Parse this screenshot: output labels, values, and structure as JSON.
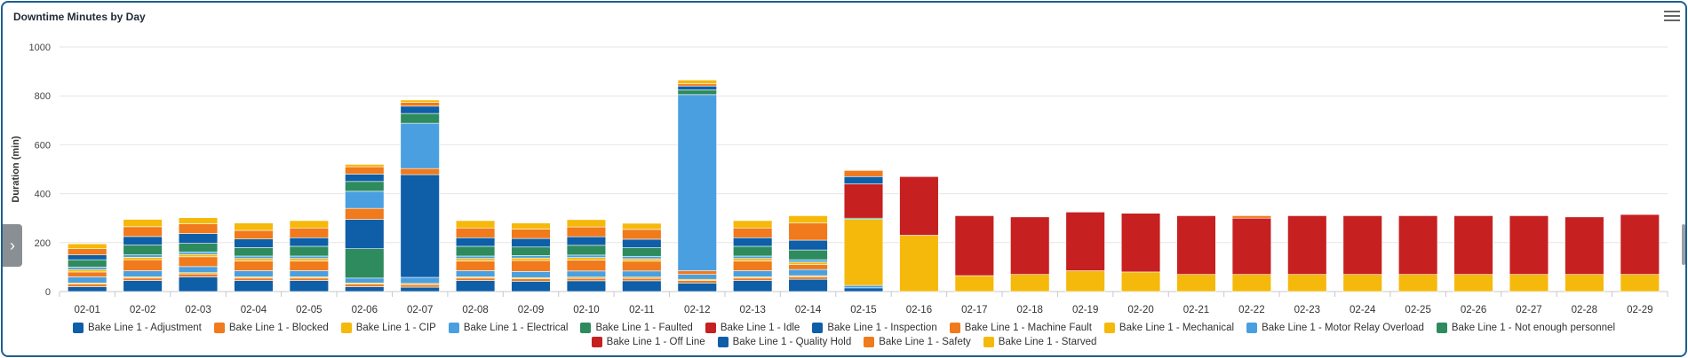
{
  "title": "Downtime Minutes by Day",
  "icons": {
    "menu": "hamburger-menu-icon",
    "side_toggle": "chevron-right-icon"
  },
  "side_toggle_glyph": "›",
  "chart_data": {
    "type": "bar",
    "stacked": true,
    "title": "Downtime Minutes by Day",
    "xlabel": "",
    "ylabel": "Duration (min)",
    "ylim": [
      0,
      1000
    ],
    "yticks": [
      0,
      200,
      400,
      600,
      800,
      1000
    ],
    "grid": true,
    "legend_position": "bottom",
    "categories": [
      "02-01",
      "02-02",
      "02-03",
      "02-04",
      "02-05",
      "02-06",
      "02-07",
      "02-08",
      "02-09",
      "02-10",
      "02-11",
      "02-12",
      "02-13",
      "02-14",
      "02-15",
      "02-16",
      "02-17",
      "02-18",
      "02-19",
      "02-20",
      "02-21",
      "02-22",
      "02-23",
      "02-24",
      "02-25",
      "02-26",
      "02-27",
      "02-28",
      "02-29"
    ],
    "series": [
      {
        "name": "Bake Line 1 - Adjustment",
        "color": "#0e5ea8",
        "values": [
          20,
          45,
          60,
          45,
          45,
          20,
          18,
          45,
          42,
          44,
          44,
          35,
          45,
          50,
          15,
          0,
          0,
          0,
          0,
          0,
          0,
          0,
          0,
          0,
          0,
          0,
          0,
          0,
          0
        ]
      },
      {
        "name": "Bake Line 1 - Blocked",
        "color": "#f07a1c",
        "values": [
          10,
          10,
          12,
          10,
          10,
          10,
          10,
          10,
          10,
          10,
          10,
          10,
          10,
          10,
          0,
          0,
          0,
          0,
          0,
          0,
          0,
          0,
          0,
          0,
          0,
          0,
          0,
          0,
          0
        ]
      },
      {
        "name": "Bake Line 1 - CIP",
        "color": "#f5b90c",
        "values": [
          5,
          5,
          5,
          5,
          5,
          5,
          5,
          5,
          5,
          5,
          5,
          5,
          5,
          5,
          0,
          0,
          0,
          0,
          0,
          0,
          0,
          0,
          0,
          0,
          0,
          0,
          0,
          0,
          0
        ]
      },
      {
        "name": "Bake Line 1 - Electrical",
        "color": "#4a9fe0",
        "values": [
          25,
          25,
          25,
          25,
          25,
          20,
          25,
          25,
          25,
          25,
          25,
          20,
          25,
          25,
          10,
          0,
          0,
          0,
          0,
          0,
          0,
          0,
          0,
          0,
          0,
          0,
          0,
          0,
          0
        ]
      },
      {
        "name": "Bake Line 1 - Faulted",
        "color": "#2e8b5e",
        "values": [
          0,
          0,
          0,
          0,
          0,
          120,
          0,
          0,
          0,
          0,
          0,
          0,
          0,
          0,
          0,
          0,
          0,
          0,
          0,
          0,
          0,
          0,
          0,
          0,
          0,
          0,
          0,
          0,
          0
        ]
      },
      {
        "name": "Bake Line 1 - Idle",
        "color": "#c62020",
        "values": [
          0,
          0,
          0,
          0,
          0,
          0,
          0,
          0,
          0,
          0,
          0,
          0,
          0,
          0,
          0,
          0,
          0,
          0,
          0,
          0,
          0,
          0,
          0,
          0,
          0,
          0,
          0,
          0,
          0
        ]
      },
      {
        "name": "Bake Line 1 - Inspection",
        "color": "#0e5ea8",
        "values": [
          0,
          0,
          0,
          0,
          0,
          120,
          420,
          0,
          0,
          0,
          0,
          0,
          0,
          0,
          0,
          0,
          0,
          0,
          0,
          0,
          0,
          0,
          0,
          0,
          0,
          0,
          0,
          0,
          0
        ]
      },
      {
        "name": "Bake Line 1 - Machine Fault",
        "color": "#f07a1c",
        "values": [
          20,
          45,
          40,
          40,
          40,
          45,
          25,
          40,
          45,
          45,
          40,
          15,
          40,
          20,
          0,
          0,
          0,
          0,
          0,
          0,
          0,
          0,
          0,
          0,
          0,
          0,
          0,
          0,
          0
        ]
      },
      {
        "name": "Bake Line 1 - Mechanical",
        "color": "#f5b90c",
        "values": [
          10,
          10,
          10,
          10,
          10,
          0,
          0,
          10,
          10,
          10,
          10,
          0,
          10,
          10,
          270,
          230,
          65,
          70,
          85,
          80,
          70,
          70,
          70,
          70,
          70,
          70,
          70,
          70,
          70
        ]
      },
      {
        "name": "Bake Line 1 - Motor Relay Overload",
        "color": "#4a9fe0",
        "values": [
          10,
          10,
          10,
          10,
          10,
          70,
          185,
          10,
          10,
          10,
          10,
          720,
          10,
          10,
          0,
          0,
          0,
          0,
          0,
          0,
          0,
          0,
          0,
          0,
          0,
          0,
          0,
          0,
          0
        ]
      },
      {
        "name": "Bake Line 1 - Not enough personnel",
        "color": "#2e8b5e",
        "values": [
          30,
          40,
          35,
          35,
          40,
          40,
          40,
          40,
          35,
          40,
          35,
          20,
          40,
          40,
          5,
          0,
          0,
          0,
          0,
          0,
          0,
          0,
          0,
          0,
          0,
          0,
          0,
          0,
          0
        ]
      },
      {
        "name": "Bake Line 1 - Off Line",
        "color": "#c62020",
        "values": [
          0,
          0,
          0,
          0,
          0,
          0,
          0,
          0,
          0,
          0,
          0,
          0,
          0,
          0,
          140,
          240,
          245,
          235,
          240,
          240,
          240,
          230,
          240,
          240,
          240,
          240,
          240,
          235,
          245
        ]
      },
      {
        "name": "Bake Line 1 - Quality Hold",
        "color": "#0e5ea8",
        "values": [
          20,
          35,
          40,
          35,
          35,
          30,
          30,
          35,
          35,
          35,
          35,
          15,
          35,
          40,
          30,
          0,
          0,
          0,
          0,
          0,
          0,
          0,
          0,
          0,
          0,
          0,
          0,
          0,
          0
        ]
      },
      {
        "name": "Bake Line 1 - Safety",
        "color": "#f07a1c",
        "values": [
          25,
          40,
          40,
          35,
          40,
          30,
          15,
          40,
          38,
          40,
          40,
          10,
          40,
          70,
          25,
          0,
          0,
          0,
          0,
          0,
          0,
          10,
          0,
          0,
          0,
          0,
          0,
          0,
          0
        ]
      },
      {
        "name": "Bake Line 1 - Starved",
        "color": "#f5b90c",
        "values": [
          20,
          30,
          25,
          30,
          30,
          10,
          10,
          30,
          25,
          30,
          25,
          15,
          30,
          30,
          0,
          0,
          0,
          0,
          0,
          0,
          0,
          0,
          0,
          0,
          0,
          0,
          0,
          0,
          0
        ]
      }
    ]
  }
}
